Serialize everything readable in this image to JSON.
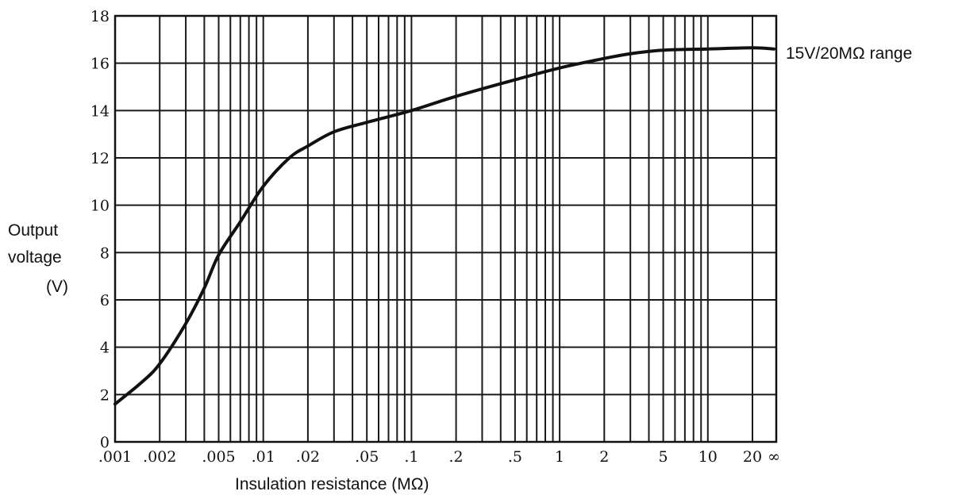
{
  "chart_data": {
    "type": "line",
    "title": "",
    "xlabel": "Insulation resistance (MΩ)",
    "ylabel": [
      "Output",
      "voltage",
      "(V)"
    ],
    "x_scale": "log",
    "y_ticks": [
      "0",
      "2",
      "4",
      "6",
      "8",
      "10",
      "12",
      "14",
      "16",
      "18"
    ],
    "ylim": [
      0,
      18
    ],
    "xlim_MOhm": [
      0.001,
      "∞"
    ],
    "x_tick_labels": [
      {
        "value": 0.001,
        "label": ".001"
      },
      {
        "value": 0.002,
        "label": ".002"
      },
      {
        "value": 0.005,
        "label": ".005"
      },
      {
        "value": 0.01,
        "label": ".01"
      },
      {
        "value": 0.02,
        "label": ".02"
      },
      {
        "value": 0.05,
        "label": ".05"
      },
      {
        "value": 0.1,
        "label": ".1"
      },
      {
        "value": 0.2,
        "label": ".2"
      },
      {
        "value": 0.5,
        "label": ".5"
      },
      {
        "value": 1,
        "label": "1"
      },
      {
        "value": 2,
        "label": "2"
      },
      {
        "value": 5,
        "label": "5"
      },
      {
        "value": 10,
        "label": "10"
      },
      {
        "value": 20,
        "label": "20"
      },
      {
        "value": "inf",
        "label": "∞"
      }
    ],
    "grid": true,
    "series": [
      {
        "name": "15V/20MΩ range",
        "points": [
          {
            "x": 0.001,
            "y": 1.6
          },
          {
            "x": 0.0015,
            "y": 2.5
          },
          {
            "x": 0.002,
            "y": 3.3
          },
          {
            "x": 0.003,
            "y": 5.0
          },
          {
            "x": 0.004,
            "y": 6.5
          },
          {
            "x": 0.005,
            "y": 7.9
          },
          {
            "x": 0.007,
            "y": 9.3
          },
          {
            "x": 0.01,
            "y": 10.8
          },
          {
            "x": 0.015,
            "y": 12.0
          },
          {
            "x": 0.02,
            "y": 12.5
          },
          {
            "x": 0.03,
            "y": 13.1
          },
          {
            "x": 0.05,
            "y": 13.5
          },
          {
            "x": 0.1,
            "y": 14.0
          },
          {
            "x": 0.2,
            "y": 14.6
          },
          {
            "x": 0.5,
            "y": 15.3
          },
          {
            "x": 1,
            "y": 15.8
          },
          {
            "x": 2,
            "y": 16.2
          },
          {
            "x": 3,
            "y": 16.4
          },
          {
            "x": 5,
            "y": 16.55
          },
          {
            "x": 10,
            "y": 16.6
          },
          {
            "x": 20,
            "y": 16.65
          },
          {
            "x": "inf",
            "y": 16.6
          }
        ]
      }
    ]
  }
}
